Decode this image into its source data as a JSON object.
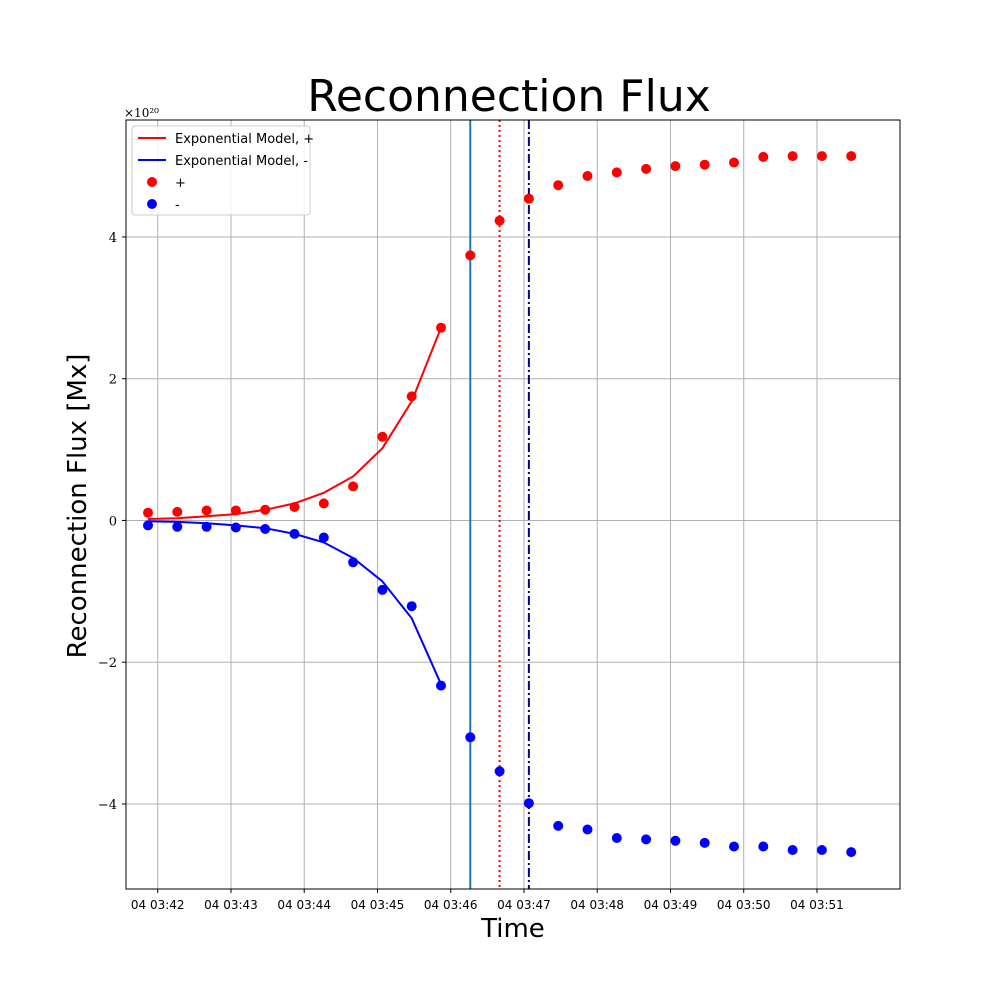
{
  "chart_data": {
    "type": "scatter",
    "title": "Reconnection Flux",
    "xlabel": "Time",
    "ylabel": "Reconnection Flux [Mx]",
    "y_scale_label": "×10²⁰",
    "x_unit": "minutes",
    "x_range": [
      "04 03:41:34",
      "04 03:52:08"
    ],
    "ylim": [
      -5.2,
      5.65
    ],
    "grid": true,
    "legend_position": "upper-left",
    "x_ticks": [
      {
        "x": "04 03:42:00",
        "label": "04 03:42"
      },
      {
        "x": "04 03:43:00",
        "label": "04 03:43"
      },
      {
        "x": "04 03:44:00",
        "label": "04 03:44"
      },
      {
        "x": "04 03:45:00",
        "label": "04 03:45"
      },
      {
        "x": "04 03:46:00",
        "label": "04 03:46"
      },
      {
        "x": "04 03:47:00",
        "label": "04 03:47"
      },
      {
        "x": "04 03:48:00",
        "label": "04 03:48"
      },
      {
        "x": "04 03:49:00",
        "label": "04 03:49"
      },
      {
        "x": "04 03:50:00",
        "label": "04 03:50"
      },
      {
        "x": "04 03:51:00",
        "label": "04 03:51"
      }
    ],
    "y_ticks": [
      {
        "y": 4,
        "label": "4"
      },
      {
        "y": 2,
        "label": "2"
      },
      {
        "y": 0,
        "label": "0"
      },
      {
        "y": -2,
        "label": "−2"
      },
      {
        "y": -4,
        "label": "−4"
      }
    ],
    "series": [
      {
        "name": "Exponential Model, +",
        "kind": "line",
        "color": "#ff0000",
        "x": [
          "04 03:41:52",
          "04 03:42:16",
          "04 03:42:40",
          "04 03:43:04",
          "04 03:43:28",
          "04 03:43:52",
          "04 03:44:16",
          "04 03:44:40",
          "04 03:45:04",
          "04 03:45:28",
          "04 03:45:52"
        ],
        "y": [
          0.02,
          0.03,
          0.06,
          0.09,
          0.15,
          0.24,
          0.39,
          0.62,
          1.02,
          1.68,
          2.72
        ]
      },
      {
        "name": "Exponential Model, -",
        "kind": "line",
        "color": "#0000ff",
        "x": [
          "04 03:41:52",
          "04 03:42:16",
          "04 03:42:40",
          "04 03:43:04",
          "04 03:43:28",
          "04 03:43:52",
          "04 03:44:16",
          "04 03:44:40",
          "04 03:45:04",
          "04 03:45:28",
          "04 03:45:52"
        ],
        "y": [
          -0.01,
          -0.02,
          -0.04,
          -0.07,
          -0.11,
          -0.19,
          -0.31,
          -0.53,
          -0.86,
          -1.38,
          -2.31
        ]
      },
      {
        "name": "+",
        "kind": "scatter",
        "color": "#ff0000",
        "x": [
          "04 03:41:52",
          "04 03:42:16",
          "04 03:42:40",
          "04 03:43:04",
          "04 03:43:28",
          "04 03:43:52",
          "04 03:44:16",
          "04 03:44:40",
          "04 03:45:04",
          "04 03:45:28",
          "04 03:45:52",
          "04 03:46:16",
          "04 03:46:40",
          "04 03:47:04",
          "04 03:47:28",
          "04 03:47:52",
          "04 03:48:16",
          "04 03:48:40",
          "04 03:49:04",
          "04 03:49:28",
          "04 03:49:52",
          "04 03:50:16",
          "04 03:50:40",
          "04 03:51:04",
          "04 03:51:28"
        ],
        "y": [
          0.11,
          0.12,
          0.14,
          0.14,
          0.15,
          0.19,
          0.24,
          0.48,
          1.18,
          1.75,
          2.72,
          3.74,
          4.23,
          4.54,
          4.73,
          4.86,
          4.91,
          4.96,
          5.0,
          5.02,
          5.05,
          5.13,
          5.14,
          5.14,
          5.14
        ]
      },
      {
        "name": "-",
        "kind": "scatter",
        "color": "#0000ff",
        "x": [
          "04 03:41:52",
          "04 03:42:16",
          "04 03:42:40",
          "04 03:43:04",
          "04 03:43:28",
          "04 03:43:52",
          "04 03:44:16",
          "04 03:44:40",
          "04 03:45:04",
          "04 03:45:28",
          "04 03:45:52",
          "04 03:46:16",
          "04 03:46:40",
          "04 03:47:04",
          "04 03:47:28",
          "04 03:47:52",
          "04 03:48:16",
          "04 03:48:40",
          "04 03:49:04",
          "04 03:49:28",
          "04 03:49:52",
          "04 03:50:16",
          "04 03:50:40",
          "04 03:51:04",
          "04 03:51:28"
        ],
        "y": [
          -0.07,
          -0.09,
          -0.09,
          -0.1,
          -0.12,
          -0.19,
          -0.24,
          -0.59,
          -0.98,
          -1.21,
          -2.33,
          -3.06,
          -3.54,
          -3.99,
          -4.31,
          -4.36,
          -4.48,
          -4.5,
          -4.52,
          -4.55,
          -4.6,
          -4.6,
          -4.65,
          -4.65,
          -4.68
        ]
      }
    ],
    "vertical_lines": [
      {
        "x": "04 03:46:16",
        "color": "#1f77b4",
        "style": "solid"
      },
      {
        "x": "04 03:46:40",
        "color": "#ff0000",
        "style": "dotted"
      },
      {
        "x": "04 03:47:04",
        "color": "#00008b",
        "style": "dashdot"
      }
    ]
  }
}
